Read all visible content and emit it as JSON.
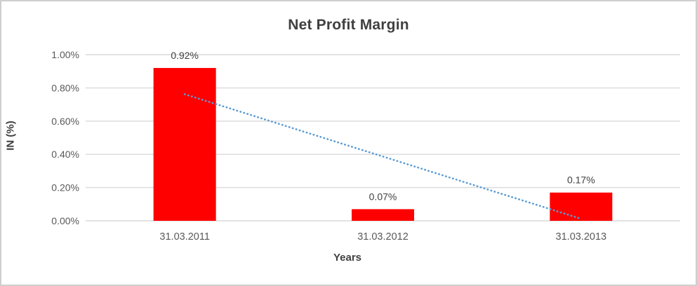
{
  "frame": {
    "border_color": "#d0cece",
    "background": "#ffffff"
  },
  "chart_data": {
    "type": "bar",
    "title": "Net Profit Margin",
    "categories": [
      "31.03.2011",
      "31.03.2012",
      "31.03.2013"
    ],
    "values": [
      0.92,
      0.07,
      0.17
    ],
    "data_labels": [
      "0.92%",
      "0.07%",
      "0.17%"
    ],
    "xlabel": "Years",
    "ylabel": "IN (%)",
    "ylim": [
      0,
      1.0
    ],
    "ytick_step": 0.2,
    "ytick_labels": [
      "0.00%",
      "0.20%",
      "0.40%",
      "0.60%",
      "0.80%",
      "1.00%"
    ],
    "grid": true,
    "legend": "none",
    "trendline": {
      "shape": "linear",
      "style": "dotted",
      "start_value": 0.762,
      "end_value": 0.012
    },
    "colors": {
      "bar": "#ff0000",
      "gridline": "#d9d9d9",
      "axis_line": "#d9d9d9",
      "title": "#404040",
      "tick_label": "#595959",
      "data_label": "#404040",
      "axis_title": "#404040",
      "trendline": "#5b9bd5"
    }
  }
}
